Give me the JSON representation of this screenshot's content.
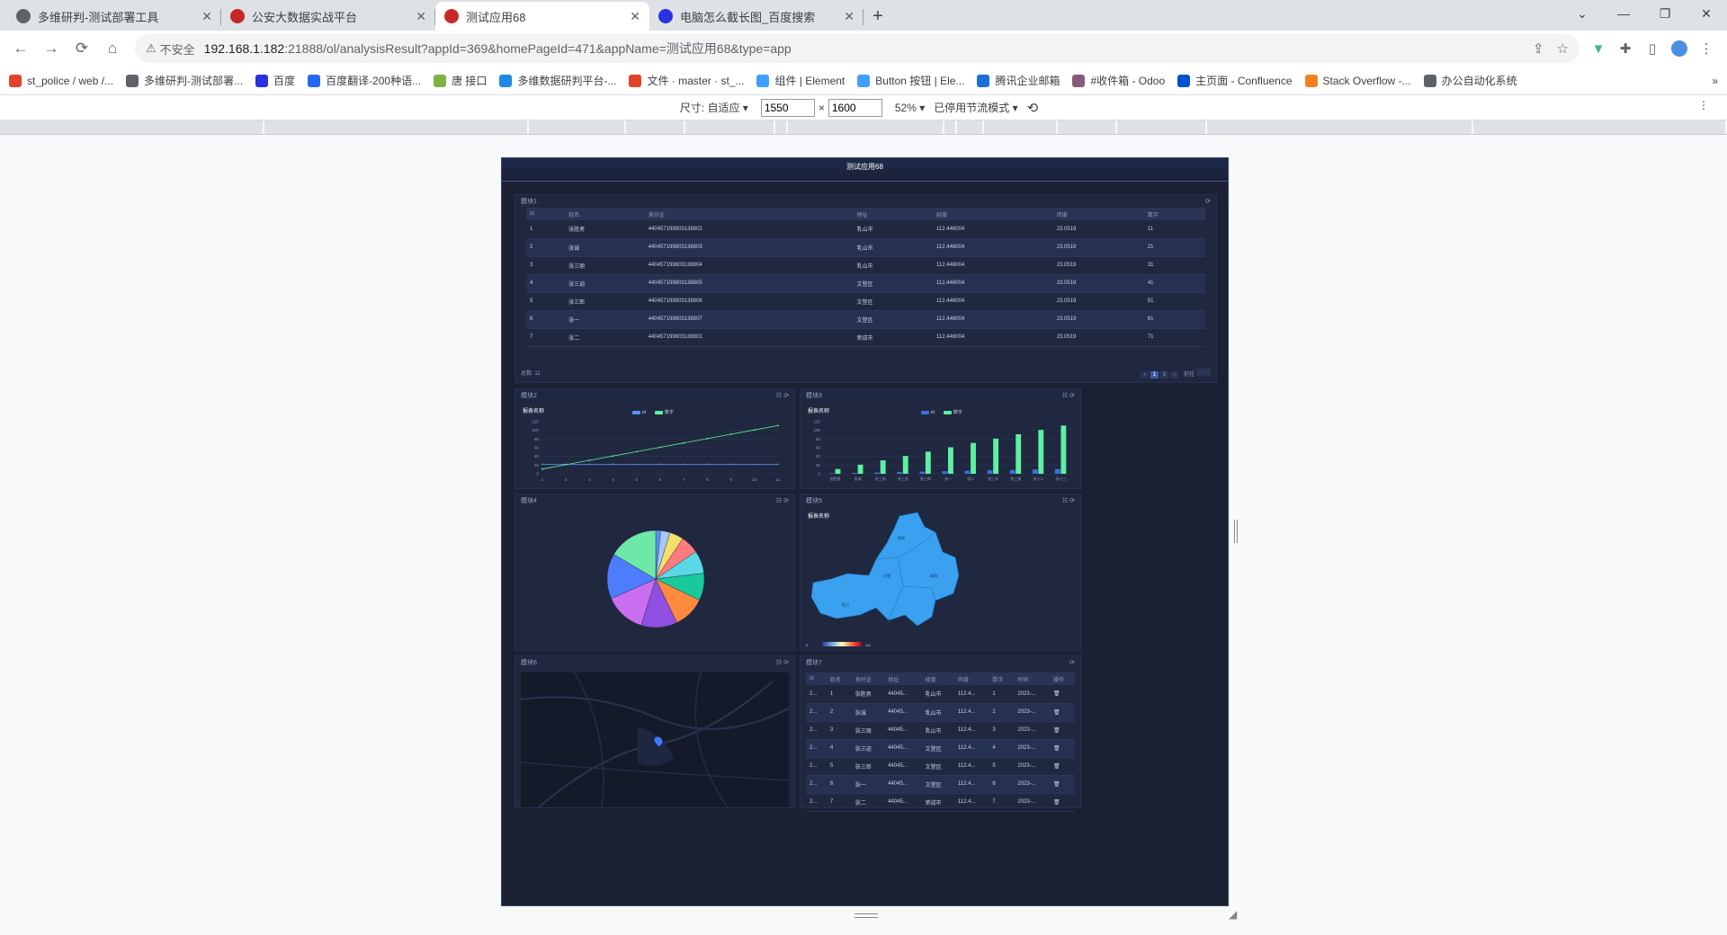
{
  "tabs": [
    {
      "title": "多维研判-测试部署工具",
      "active": false,
      "fav": "#5f6368"
    },
    {
      "title": "公安大数据实战平台",
      "active": false,
      "fav": "#c62828"
    },
    {
      "title": "测试应用68",
      "active": true,
      "fav": "#c62828"
    },
    {
      "title": "电脑怎么截长图_百度搜索",
      "active": false,
      "fav": "#2932e1"
    }
  ],
  "window_controls": [
    "⌄",
    "—",
    "❐",
    "✕"
  ],
  "address": {
    "insecure": "不安全",
    "url_host": "192.168.1.182",
    "url_rest": ":21888/ol/analysisResult?appId=369&homePageId=471&appName=测试应用68&type=app"
  },
  "bookmarks": [
    {
      "label": "st_police / web /...",
      "color": "#e24329"
    },
    {
      "label": "多维研判-测试部署...",
      "color": "#5f6368"
    },
    {
      "label": "百度",
      "color": "#2932e1"
    },
    {
      "label": "百度翻译-200种语...",
      "color": "#2468f2"
    },
    {
      "label": "唐 接口",
      "color": "#7cb342"
    },
    {
      "label": "多维数据研判平台-...",
      "color": "#1e88e5"
    },
    {
      "label": "文件 · master · st_...",
      "color": "#e24329"
    },
    {
      "label": "组件 | Element",
      "color": "#409eff"
    },
    {
      "label": "Button 按钮 | Ele...",
      "color": "#409eff"
    },
    {
      "label": "腾讯企业邮箱",
      "color": "#1e6fd9"
    },
    {
      "label": "#收件箱 - Odoo",
      "color": "#875a7b"
    },
    {
      "label": "主页面 - Confluence",
      "color": "#0052cc"
    },
    {
      "label": "Stack Overflow -...",
      "color": "#f48024"
    },
    {
      "label": "办公自动化系统",
      "color": "#5f6368"
    }
  ],
  "devtools": {
    "size_label": "尺寸: 自适应",
    "width": "1550",
    "height": "1600",
    "zoom": "52%",
    "throttle": "已停用节流模式"
  },
  "dashboard": {
    "title": "测试应用68",
    "table1": {
      "title": "模块1",
      "columns": [
        "id",
        "姓名",
        "身份证",
        "地址",
        "经度",
        "纬度",
        "数字"
      ],
      "rows": [
        [
          "1",
          "张胜男",
          "440457199803138802",
          "乳山市",
          "112.446004",
          "23.0519",
          "11"
        ],
        [
          "2",
          "张诚",
          "440457199803138803",
          "乳山市",
          "112.446004",
          "23.0519",
          "21"
        ],
        [
          "3",
          "张三丽",
          "440457199803138804",
          "乳山市",
          "112.446004",
          "23.0519",
          "31"
        ],
        [
          "4",
          "张三迎",
          "440457199803138805",
          "文登区",
          "112.446004",
          "23.0519",
          "41"
        ],
        [
          "5",
          "张三郎",
          "440457199803138806",
          "文登区",
          "112.446004",
          "23.0519",
          "51"
        ],
        [
          "6",
          "张一",
          "440457199803138807",
          "文登区",
          "112.446004",
          "23.0519",
          "61"
        ],
        [
          "7",
          "张二",
          "440457199803138801",
          "荣成市",
          "112.446004",
          "23.0519",
          "71"
        ]
      ],
      "total": "总数:  11",
      "pages": [
        "‹",
        "1",
        "2",
        "›"
      ],
      "goto": "前往"
    },
    "line_panel": {
      "title": "模块2",
      "chart_title": "报表名称"
    },
    "bar_panel": {
      "title": "模块3",
      "chart_title": "报表名称"
    },
    "pie_panel": {
      "title": "模块4"
    },
    "map_panel": {
      "title": "模块5",
      "chart_title": "报表名称"
    },
    "geo_panel": {
      "title": "模块6"
    },
    "table2": {
      "title": "模块7",
      "columns": [
        "id",
        "姓名",
        "身份证",
        "地址",
        "经度",
        "纬度",
        "数字",
        "时间",
        "操作"
      ],
      "rows": [
        [
          "2...",
          "1",
          "张胜男",
          "44045...",
          "乳山市",
          "112.4...",
          "1",
          "2023-..."
        ],
        [
          "2...",
          "2",
          "张诚",
          "44045...",
          "乳山市",
          "112.4...",
          "2",
          "2023-..."
        ],
        [
          "2...",
          "3",
          "张三丽",
          "44045...",
          "乳山市",
          "112.4...",
          "3",
          "2023-..."
        ],
        [
          "2...",
          "4",
          "张三迎",
          "44045...",
          "文登区",
          "112.4...",
          "4",
          "2023-..."
        ],
        [
          "2...",
          "5",
          "张三郎",
          "44045...",
          "文登区",
          "112.4...",
          "5",
          "2023-..."
        ],
        [
          "2...",
          "6",
          "张一",
          "44045...",
          "文登区",
          "112.4...",
          "6",
          "2023-..."
        ],
        [
          "2...",
          "7",
          "张二",
          "44045...",
          "荣成市",
          "112.4...",
          "7",
          "2023-..."
        ]
      ]
    }
  },
  "chart_data": [
    {
      "type": "line",
      "title": "报表名称",
      "x": [
        "1",
        "2",
        "3",
        "4",
        "5",
        "6",
        "7",
        "8",
        "9",
        "10",
        "11"
      ],
      "ylim": [
        0,
        120
      ],
      "yticks": [
        "0",
        "20",
        "40",
        "60",
        "80",
        "100",
        "120"
      ],
      "series": [
        {
          "name": "id",
          "color": "#5b8ff9",
          "values": [
            22,
            22,
            22,
            22,
            22,
            22,
            22,
            22,
            22,
            22,
            22
          ]
        },
        {
          "name": "数字",
          "color": "#5ef0a0",
          "values": [
            11,
            21,
            31,
            41,
            51,
            61,
            71,
            81,
            91,
            101,
            111
          ]
        }
      ]
    },
    {
      "type": "bar",
      "title": "报表名称",
      "categories": [
        "张胜男",
        "张诚",
        "张三丽",
        "张三迎",
        "张三郎",
        "张一",
        "张二",
        "张三丰",
        "张三娘",
        "张十二",
        "张十三"
      ],
      "ylim": [
        0,
        120
      ],
      "yticks": [
        "0",
        "20",
        "40",
        "60",
        "80",
        "100",
        "120"
      ],
      "series": [
        {
          "name": "id",
          "color": "#3a6fe0",
          "values": [
            1,
            2,
            3,
            4,
            5,
            6,
            7,
            8,
            9,
            10,
            11
          ]
        },
        {
          "name": "数字",
          "color": "#5ef0a0",
          "values": [
            11,
            21,
            31,
            41,
            51,
            61,
            71,
            81,
            91,
            101,
            111
          ]
        }
      ]
    },
    {
      "type": "pie",
      "values": [
        11,
        21,
        31,
        41,
        51,
        61,
        71,
        81,
        91,
        101,
        111
      ],
      "colors": [
        "#5b8ff9",
        "#a6c8ff",
        "#f4e06a",
        "#ff7c7c",
        "#5ad8e6",
        "#1ac99a",
        "#ff8a3d",
        "#8f4fe0",
        "#c96ef0",
        "#4e7cff",
        "#6ee8a8"
      ]
    }
  ],
  "map": {
    "places": [
      "荣成",
      "乳山",
      "文登",
      "威海"
    ],
    "legend_min": "0",
    "legend_max": "111"
  }
}
